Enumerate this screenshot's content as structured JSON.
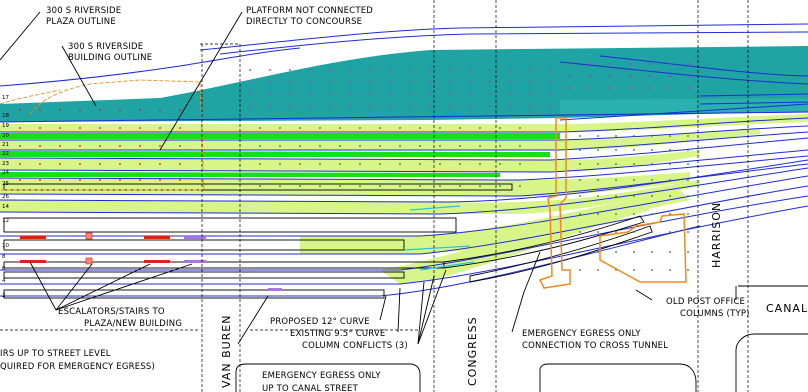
{
  "labels": {
    "plaza_outline_line1": "300 S RIVERSIDE",
    "plaza_outline_line2": "PLAZA OUTLINE",
    "building_outline_line1": "300 S RIVERSIDE",
    "building_outline_line2": "BUILDING OUTLINE",
    "platform_line1": "PLATFORM NOT CONNECTED",
    "platform_line2": "DIRECTLY TO CONCOURSE",
    "escalators_line1": "ESCALATORS/STAIRS TO",
    "escalators_line2": "PLAZA/NEW BUILDING",
    "stairs_line1": "IRS UP TO STREET LEVEL",
    "stairs_line2": "QUIRED FOR EMERGENCY EGRESS)",
    "proposed_curve": "PROPOSED 12° CURVE",
    "existing_curve": "EXISTING 9.5° CURVE",
    "column_conflicts": "COLUMN CONFLICTS (3)",
    "egress_canal_line1": "EMERGENCY EGRESS ONLY",
    "egress_canal_line2": "UP TO CANAL STREET",
    "egress_tunnel_line1": "EMERGENCY EGRESS ONLY",
    "egress_tunnel_line2": "CONNECTION TO CROSS TUNNEL",
    "post_office_line1": "OLD POST OFFICE",
    "post_office_line2": "COLUMNS (TYP)"
  },
  "streets": {
    "van_buren": "VAN BUREN",
    "congress": "CONGRESS",
    "harrison": "HARRISON",
    "canal": "CANAL"
  },
  "track_numbers": [
    "17",
    "18",
    "19",
    "20",
    "21",
    "22",
    "23",
    "24",
    "25",
    "26",
    "14",
    "12",
    "10",
    "8",
    "6",
    "4",
    "2"
  ],
  "colors": {
    "teal_platform": "#1fa3a3",
    "green_platform": "#17e017",
    "lime_platform": "#d8f58a",
    "track_blue": "#1f2bd6",
    "orange_outline": "#f08a1c",
    "red_escalator": "#e0201a",
    "purple_stairs": "#a873e8",
    "magenta_dots": "#d01ad0"
  }
}
